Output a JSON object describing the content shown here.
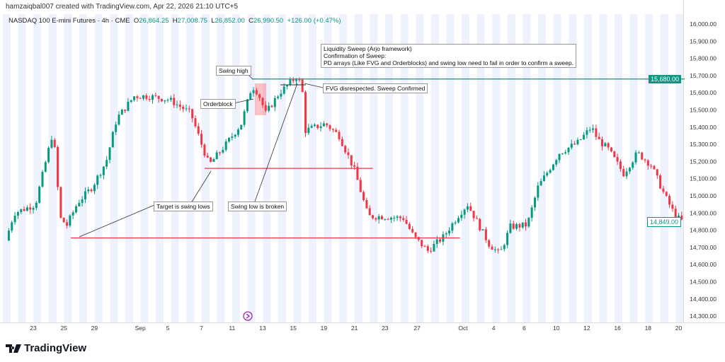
{
  "credit": "hamzaiqbal007 created with TradingView.com, Apr 22, 2026 21:10 UTC+5",
  "legend": {
    "symbol": "NASDAQ 100 E-mini Futures · 4h · CME",
    "o_label": "O",
    "o": "26,864.25",
    "h_label": "H",
    "h": "27,008.75",
    "l_label": "L",
    "l": "26,852.00",
    "c_label": "C",
    "c": "26,990.50",
    "change": "+126.00 (+0.47%)"
  },
  "annotations": {
    "title": "Liquidity Sweep (Arjo framework)",
    "line2": "Confirmation of Sweep:",
    "line3": "PD arrays (Like FVG and Orderblocks) and swing low need to fail in order to confirm a sweep.",
    "swing_high": "Swing high",
    "orderblock": "Orderblock",
    "fvg": "FVG disrespected. Sweep Confirmed",
    "target": "Target is swing lows",
    "swing_low_broken": "Swing low is broken"
  },
  "price_labels": {
    "level": "15,680.00",
    "last": "14,849.00"
  },
  "brand": "TradingView",
  "colors": {
    "up": "#089981",
    "down": "#f23645",
    "level": "#089981",
    "band": "#eef2fd"
  },
  "chart_data": {
    "type": "candlestick",
    "ylim": [
      14250,
      16050
    ],
    "y_ticks": [
      14300,
      14400,
      14500,
      14600,
      14700,
      14800,
      14900,
      15000,
      15100,
      15200,
      15300,
      15400,
      15500,
      15600,
      15700,
      15800,
      15900,
      16000
    ],
    "x_ticks": [
      {
        "label": "23",
        "day": 0
      },
      {
        "label": "25",
        "day": 2
      },
      {
        "label": "29",
        "day": 4
      },
      {
        "label": "Sep",
        "day": 7
      },
      {
        "label": "5",
        "day": 8.8
      },
      {
        "label": "7",
        "day": 11
      },
      {
        "label": "11",
        "day": 13
      },
      {
        "label": "13",
        "day": 15
      },
      {
        "label": "15",
        "day": 17
      },
      {
        "label": "19",
        "day": 19
      },
      {
        "label": "21",
        "day": 21
      },
      {
        "label": "23",
        "day": 23
      },
      {
        "label": "27",
        "day": 25.1
      },
      {
        "label": "Oct",
        "day": 28.1
      },
      {
        "label": "4",
        "day": 30.1
      },
      {
        "label": "6",
        "day": 32.1
      },
      {
        "label": "10",
        "day": 34.2
      },
      {
        "label": "12",
        "day": 36.2
      },
      {
        "label": "16",
        "day": 38.2
      },
      {
        "label": "18",
        "day": 40.2
      },
      {
        "label": "20",
        "day": 42.2
      }
    ],
    "price_path": [
      [
        -1.8,
        14740
      ],
      [
        -1.25,
        14900
      ],
      [
        0.14,
        14950
      ],
      [
        1.3,
        15380
      ],
      [
        1.76,
        14870
      ],
      [
        2.2,
        14830
      ],
      [
        2.9,
        14960
      ],
      [
        3.84,
        15050
      ],
      [
        4.77,
        15200
      ],
      [
        5.46,
        15450
      ],
      [
        6.6,
        15580
      ],
      [
        7.5,
        15580
      ],
      [
        8.9,
        15560
      ],
      [
        10.3,
        15480
      ],
      [
        11.0,
        15300
      ],
      [
        11.5,
        15180
      ],
      [
        12.6,
        15300
      ],
      [
        13.6,
        15420
      ],
      [
        14.3,
        15640
      ],
      [
        14.7,
        15600
      ],
      [
        15.2,
        15480
      ],
      [
        16.1,
        15600
      ],
      [
        17.3,
        15700
      ],
      [
        17.6,
        15600
      ],
      [
        17.8,
        15380
      ],
      [
        19.1,
        15420
      ],
      [
        20.0,
        15350
      ],
      [
        21.0,
        15150
      ],
      [
        21.9,
        14880
      ],
      [
        22.8,
        14880
      ],
      [
        24.2,
        14870
      ],
      [
        24.9,
        14760
      ],
      [
        25.8,
        14680
      ],
      [
        26.8,
        14760
      ],
      [
        27.9,
        14900
      ],
      [
        28.4,
        14950
      ],
      [
        29.8,
        14720
      ],
      [
        30.5,
        14660
      ],
      [
        31.2,
        14820
      ],
      [
        32.3,
        14830
      ],
      [
        33.0,
        15050
      ],
      [
        34.4,
        15250
      ],
      [
        35.6,
        15310
      ],
      [
        36.5,
        15400
      ],
      [
        36.9,
        15330
      ],
      [
        37.6,
        15270
      ],
      [
        38.6,
        15130
      ],
      [
        39.5,
        15250
      ],
      [
        40.4,
        15180
      ],
      [
        41.3,
        15000
      ],
      [
        42.0,
        14880
      ],
      [
        42.5,
        14849
      ]
    ],
    "levels": [
      {
        "name": "swing-high",
        "price": 15680,
        "from": 14.3,
        "to": 42.6
      },
      {
        "name": "swing-low-1",
        "price": 15160,
        "from": 11.2,
        "to": 22.2
      },
      {
        "name": "swing-low-2",
        "price": 14755,
        "from": 2.45,
        "to": 27.9
      }
    ]
  }
}
